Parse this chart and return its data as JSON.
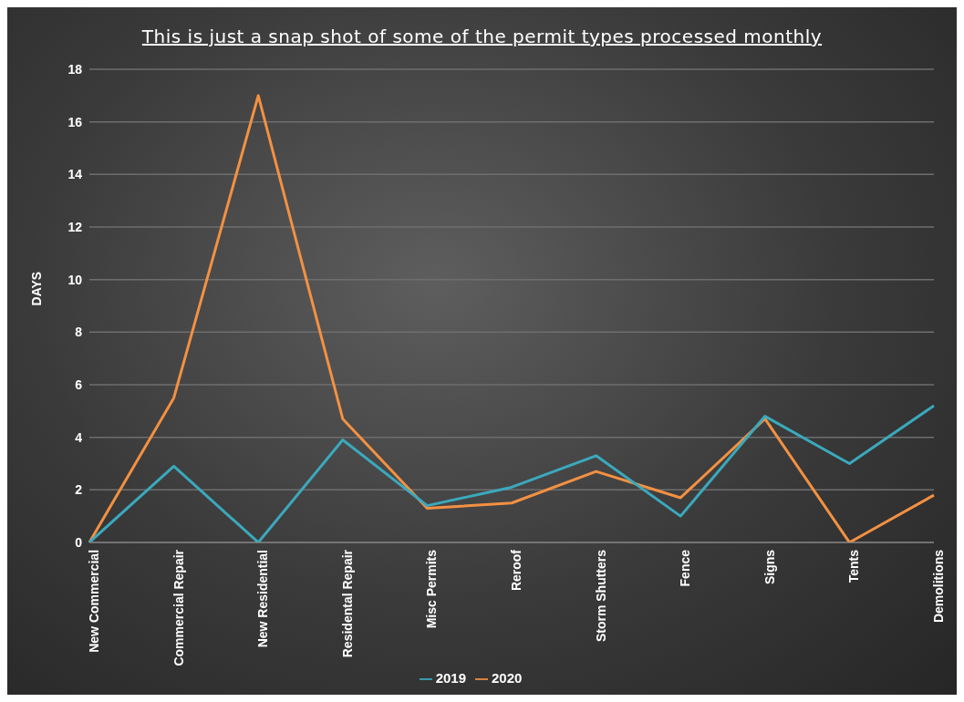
{
  "chart_data": {
    "type": "line",
    "title": "This is just a snap shot of some of the permit types processed monthly",
    "ylabel": "DAYS",
    "categories": [
      "New Commercial",
      "Commercial Repair",
      "New Residential",
      "Residental Repair",
      "Misc Permits",
      "Reroof",
      "Storm Shutters",
      "Fence",
      "Signs",
      "Tents",
      "Demolitions"
    ],
    "series": [
      {
        "name": "2020",
        "color": "#f39142",
        "values": [
          0,
          5.5,
          17,
          4.7,
          1.3,
          1.5,
          2.7,
          1.7,
          4.7,
          0,
          1.8
        ]
      },
      {
        "name": "2019",
        "color": "#3ba9bd",
        "values": [
          0,
          2.9,
          0,
          3.9,
          1.4,
          2.1,
          3.3,
          1.0,
          4.8,
          3.0,
          5.2
        ]
      }
    ],
    "ylim": [
      0,
      18
    ],
    "yticks": [
      0,
      2,
      4,
      6,
      8,
      10,
      12,
      14,
      16,
      18
    ],
    "grid": "y",
    "legend": "bottom",
    "marker": "none",
    "line_style": "solid"
  }
}
